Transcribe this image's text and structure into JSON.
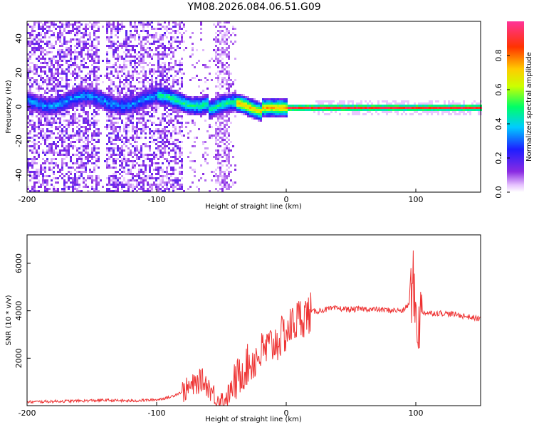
{
  "title": "YM08.2026.084.06.51.G09",
  "chart_data": [
    {
      "type": "heatmap",
      "xlabel": "Height of straight line (km)",
      "ylabel": "Frequency (Hz)",
      "xlim": [
        -200,
        150
      ],
      "ylim": [
        -50,
        50
      ],
      "x_ticks": [
        -200,
        -100,
        0,
        100
      ],
      "y_ticks": [
        -40,
        -20,
        0,
        20,
        40
      ],
      "colorbar": {
        "label": "Normalized spectral amplitude",
        "range": [
          0,
          1
        ],
        "ticks": [
          0.0,
          0.2,
          0.4,
          0.6,
          0.8
        ]
      },
      "description_points": {
        "main_ridge_frequency_hz": 0,
        "broad_noise_region_km": [
          -200,
          -80
        ],
        "spike_column_km": -50,
        "gap_column_km": -140
      }
    },
    {
      "type": "line",
      "xlabel": "Height of straight line (km)",
      "ylabel": "SNR (10 * v/v)",
      "xlim": [
        -200,
        150
      ],
      "ylim": [
        0,
        7200
      ],
      "x_ticks": [
        -200,
        -100,
        0,
        100
      ],
      "y_ticks": [
        2000,
        4000,
        6000
      ],
      "series": [
        {
          "color": "#ee3333",
          "x": [
            -200,
            -180,
            -160,
            -140,
            -120,
            -100,
            -90,
            -80,
            -70,
            -65,
            -60,
            -55,
            -50,
            -45,
            -40,
            -35,
            -30,
            -25,
            -20,
            -15,
            -10,
            -5,
            0,
            5,
            10,
            15,
            20,
            30,
            40,
            50,
            60,
            70,
            80,
            90,
            95,
            98,
            100,
            102,
            105,
            110,
            120,
            130,
            140,
            150
          ],
          "y": [
            150,
            180,
            200,
            230,
            200,
            250,
            350,
            600,
            900,
            1100,
            800,
            400,
            200,
            400,
            900,
            1400,
            1700,
            1900,
            2200,
            2400,
            2600,
            2800,
            3100,
            3400,
            3700,
            3800,
            3950,
            4050,
            4100,
            4050,
            4080,
            4050,
            4020,
            4000,
            4300,
            5200,
            3900,
            3400,
            3950,
            3900,
            3900,
            3850,
            3750,
            3650
          ]
        }
      ]
    }
  ]
}
